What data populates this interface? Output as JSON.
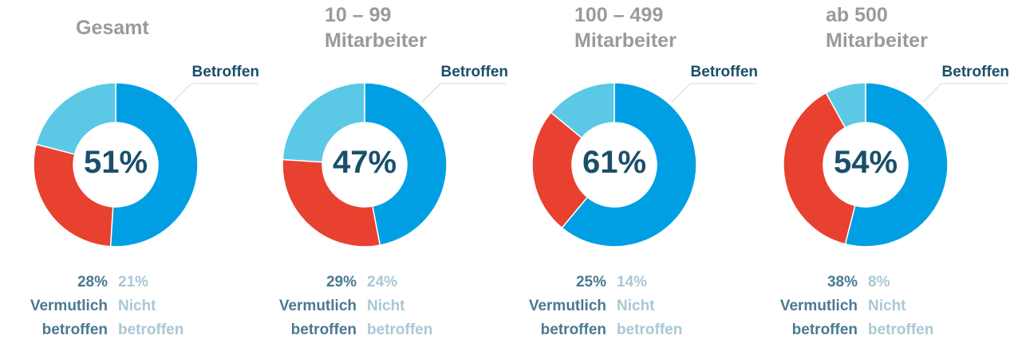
{
  "chart_data": [
    {
      "type": "pie",
      "title": "Gesamt",
      "categories": [
        "Betroffen",
        "Vermutlich betroffen",
        "Nicht betroffen"
      ],
      "values": [
        51,
        28,
        21
      ],
      "value_labels": [
        "51%",
        "28%",
        "21%"
      ],
      "colors": [
        "#009fe3",
        "#e8412f",
        "#5bc8e6"
      ]
    },
    {
      "type": "pie",
      "title": "10 – 99 Mitarbeiter",
      "categories": [
        "Betroffen",
        "Vermutlich betroffen",
        "Nicht betroffen"
      ],
      "values": [
        47,
        29,
        24
      ],
      "value_labels": [
        "47%",
        "29%",
        "24%"
      ],
      "colors": [
        "#009fe3",
        "#e8412f",
        "#5bc8e6"
      ]
    },
    {
      "type": "pie",
      "title": "100 – 499 Mitarbeiter",
      "categories": [
        "Betroffen",
        "Vermutlich betroffen",
        "Nicht betroffen"
      ],
      "values": [
        61,
        25,
        14
      ],
      "value_labels": [
        "61%",
        "25%",
        "14%"
      ],
      "colors": [
        "#009fe3",
        "#e8412f",
        "#5bc8e6"
      ]
    },
    {
      "type": "pie",
      "title": "ab 500 Mitarbeiter",
      "categories": [
        "Betroffen",
        "Vermutlich betroffen",
        "Nicht betroffen"
      ],
      "values": [
        54,
        38,
        8
      ],
      "value_labels": [
        "54%",
        "38%",
        "8%"
      ],
      "colors": [
        "#009fe3",
        "#e8412f",
        "#5bc8e6"
      ]
    }
  ]
}
